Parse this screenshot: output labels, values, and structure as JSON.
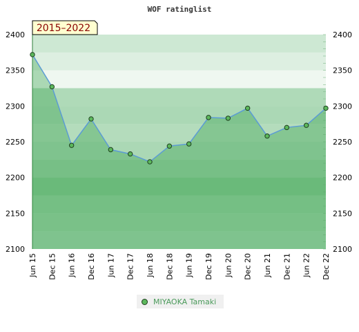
{
  "chart_data": {
    "type": "line",
    "title": "WOF ratinglist",
    "period_badge": "2015–2022",
    "categories": [
      "Jun 15",
      "Dec 15",
      "Jun 16",
      "Dec 16",
      "Jun 17",
      "Dec 17",
      "Jun 18",
      "Dec 18",
      "Jun 19",
      "Dec 19",
      "Jun 20",
      "Dec 20",
      "Jun 21",
      "Dec 21",
      "Jun 22",
      "Dec 22"
    ],
    "series": [
      {
        "name": "MIYAOKA Tamaki",
        "values": [
          2372,
          2327,
          2245,
          2282,
          2239,
          2233,
          2222,
          2244,
          2247,
          2284,
          2283,
          2297,
          2258,
          2270,
          2273,
          2297
        ]
      }
    ],
    "ylim": [
      2100,
      2400
    ],
    "yticks": [
      2100,
      2150,
      2200,
      2250,
      2300,
      2350,
      2400
    ],
    "y_axis_both_sides": true,
    "legend_position": "bottom-center",
    "colors": {
      "line": "#5b9bd5",
      "marker": "#5cb85c",
      "marker_edge": "#1e3d1e",
      "band": "#2e9e45"
    }
  }
}
